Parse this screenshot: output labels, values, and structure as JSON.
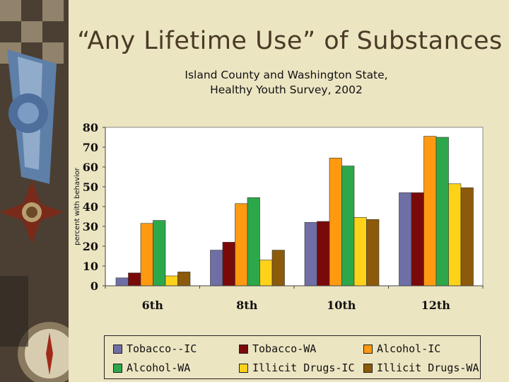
{
  "slide": {
    "title": "“Any Lifetime Use” of Substances"
  },
  "chart_data": {
    "type": "bar",
    "title": "Island County and Washington State,",
    "subtitle": "Healthy Youth Survey, 2002",
    "xlabel": "",
    "ylabel": "percent with behavior",
    "ylim": [
      0,
      80
    ],
    "yticks": [
      "0",
      "10",
      "20",
      "30",
      "40",
      "50",
      "60",
      "70",
      "80"
    ],
    "categories": [
      "6th",
      "8th",
      "10th",
      "12th"
    ],
    "grid": false,
    "legend_position": "bottom",
    "series": [
      {
        "name": "Tobacco--IC",
        "color": "#6f6fa6",
        "values": [
          4,
          18,
          32,
          47
        ]
      },
      {
        "name": "Tobacco-WA",
        "color": "#7a0a0a",
        "values": [
          6.5,
          22,
          32.5,
          47
        ]
      },
      {
        "name": "Alcohol-IC",
        "color": "#ff9a10",
        "values": [
          31.5,
          41.5,
          64.5,
          75.5
        ]
      },
      {
        "name": "Alcohol-WA",
        "color": "#2ca84a",
        "values": [
          33,
          44.5,
          60.5,
          75
        ]
      },
      {
        "name": "Illicit Drugs-IC",
        "color": "#ffd21a",
        "values": [
          5,
          13,
          34.5,
          51.5
        ]
      },
      {
        "name": "Illicit Drugs-WA",
        "color": "#8b5a0a",
        "values": [
          7,
          18,
          33.5,
          49.5
        ]
      }
    ]
  }
}
